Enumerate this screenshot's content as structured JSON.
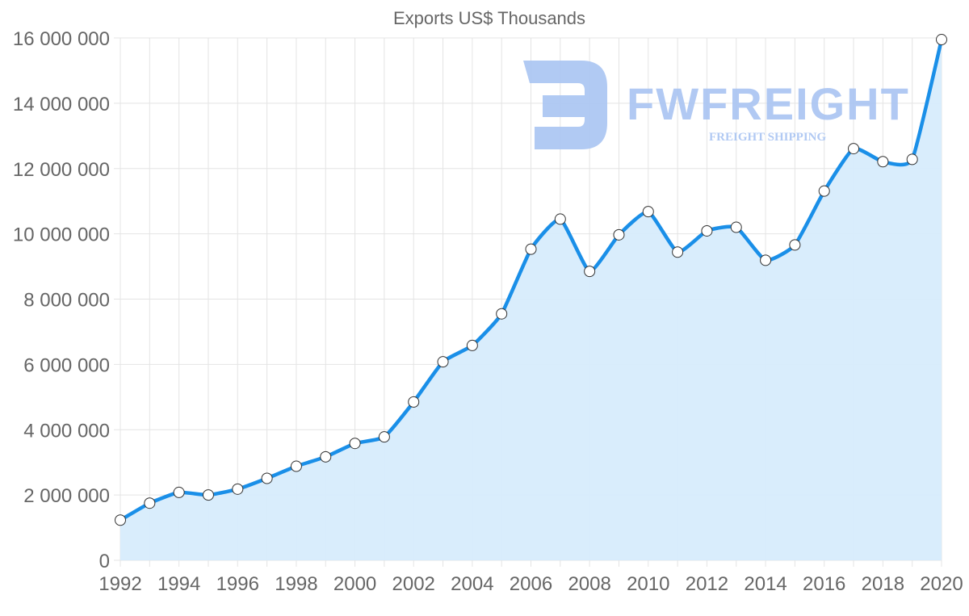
{
  "watermark": {
    "brand": "FWFREIGHT",
    "tagline": "FREIGHT SHIPPING",
    "color": "#a9c4f2"
  },
  "chart_data": {
    "type": "area",
    "title": "Exports US$ Thousands",
    "xlabel": "",
    "ylabel": "",
    "x": [
      1992,
      1993,
      1994,
      1995,
      1996,
      1997,
      1998,
      1999,
      2000,
      2001,
      2002,
      2003,
      2004,
      2005,
      2006,
      2007,
      2008,
      2009,
      2010,
      2011,
      2012,
      2013,
      2014,
      2015,
      2016,
      2017,
      2018,
      2019,
      2020
    ],
    "series": [
      {
        "name": "Exports US$ Thousands",
        "values": [
          1230000,
          1750000,
          2080000,
          2000000,
          2180000,
          2510000,
          2880000,
          3170000,
          3580000,
          3780000,
          4850000,
          6080000,
          6580000,
          7550000,
          9530000,
          10450000,
          8850000,
          9970000,
          10680000,
          9440000,
          10090000,
          10200000,
          9190000,
          9660000,
          11310000,
          12610000,
          12210000,
          12280000,
          15950000
        ],
        "line_color": "#1a8fe8",
        "fill_color": "#d7ecfc"
      }
    ],
    "ylim": [
      0,
      16000000
    ],
    "yticks": [
      0,
      2000000,
      4000000,
      6000000,
      8000000,
      10000000,
      12000000,
      14000000,
      16000000
    ],
    "ytick_labels": [
      "0",
      "2 000 000",
      "4 000 000",
      "6 000 000",
      "8 000 000",
      "10 000 000",
      "12 000 000",
      "14 000 000",
      "16 000 000"
    ],
    "xticks": [
      1992,
      1994,
      1996,
      1998,
      2000,
      2002,
      2004,
      2006,
      2008,
      2010,
      2012,
      2014,
      2016,
      2018,
      2020
    ],
    "xtick_labels": [
      "1992",
      "1994",
      "1996",
      "1998",
      "2000",
      "2002",
      "2004",
      "2006",
      "2008",
      "2010",
      "2012",
      "2014",
      "2016",
      "2018",
      "2020"
    ],
    "grid": true,
    "legend": "none"
  }
}
